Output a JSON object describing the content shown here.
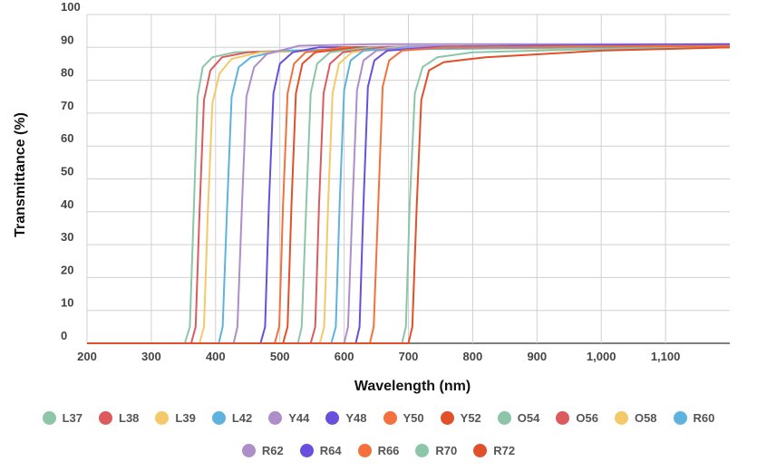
{
  "chart_data": {
    "type": "line",
    "title": "",
    "xlabel": "Wavelength (nm)",
    "ylabel": "Transmittance (%)",
    "xlim": [
      200,
      1200
    ],
    "ylim": [
      0,
      100
    ],
    "x_ticks": [
      200,
      300,
      400,
      500,
      600,
      700,
      800,
      900,
      1000,
      1100
    ],
    "x_tick_labels": [
      "200",
      "300",
      "400",
      "500",
      "600",
      "700",
      "800",
      "900",
      "1,000",
      "1,100"
    ],
    "y_ticks": [
      0,
      10,
      20,
      30,
      40,
      50,
      60,
      70,
      80,
      90,
      100
    ],
    "y_tick_labels": [
      "0",
      "10",
      "20",
      "30",
      "40",
      "50",
      "60",
      "70",
      "80",
      "90",
      "100"
    ],
    "grid": true,
    "legend_position": "bottom",
    "series": [
      {
        "name": "L37",
        "color": "#8cc5a7",
        "points": [
          [
            200,
            0
          ],
          [
            352,
            0
          ],
          [
            360,
            5
          ],
          [
            366,
            40
          ],
          [
            372,
            75
          ],
          [
            380,
            84
          ],
          [
            395,
            87
          ],
          [
            430,
            88.5
          ],
          [
            600,
            89.5
          ],
          [
            1200,
            90
          ]
        ]
      },
      {
        "name": "L38",
        "color": "#dc5a5e",
        "points": [
          [
            200,
            0
          ],
          [
            362,
            0
          ],
          [
            369,
            5
          ],
          [
            375,
            40
          ],
          [
            382,
            74
          ],
          [
            392,
            83
          ],
          [
            410,
            87
          ],
          [
            450,
            88.5
          ],
          [
            650,
            89.5
          ],
          [
            1200,
            90
          ]
        ]
      },
      {
        "name": "L39",
        "color": "#f3c96a",
        "points": [
          [
            200,
            0
          ],
          [
            375,
            0
          ],
          [
            382,
            5
          ],
          [
            388,
            40
          ],
          [
            395,
            73
          ],
          [
            406,
            82
          ],
          [
            425,
            86.5
          ],
          [
            470,
            88.5
          ],
          [
            700,
            89.5
          ],
          [
            1200,
            90
          ]
        ]
      },
      {
        "name": "L42",
        "color": "#5eb3de",
        "points": [
          [
            200,
            0
          ],
          [
            405,
            0
          ],
          [
            411,
            5
          ],
          [
            418,
            42
          ],
          [
            425,
            75
          ],
          [
            436,
            84
          ],
          [
            455,
            87
          ],
          [
            500,
            89
          ],
          [
            1200,
            90.5
          ]
        ]
      },
      {
        "name": "Y44",
        "color": "#ae8ec8",
        "points": [
          [
            200,
            0
          ],
          [
            428,
            0
          ],
          [
            434,
            5
          ],
          [
            441,
            42
          ],
          [
            448,
            75
          ],
          [
            460,
            84
          ],
          [
            480,
            88
          ],
          [
            530,
            90.5
          ],
          [
            650,
            91
          ],
          [
            1200,
            91
          ]
        ]
      },
      {
        "name": "Y48",
        "color": "#6a4fdc",
        "points": [
          [
            200,
            0
          ],
          [
            470,
            0
          ],
          [
            477,
            5
          ],
          [
            483,
            42
          ],
          [
            490,
            76
          ],
          [
            500,
            85
          ],
          [
            520,
            88.5
          ],
          [
            560,
            90
          ],
          [
            1200,
            91
          ]
        ]
      },
      {
        "name": "Y50",
        "color": "#f4703c",
        "points": [
          [
            200,
            0
          ],
          [
            492,
            0
          ],
          [
            499,
            5
          ],
          [
            505,
            42
          ],
          [
            512,
            76
          ],
          [
            522,
            85
          ],
          [
            540,
            88.5
          ],
          [
            600,
            90
          ],
          [
            1200,
            90.5
          ]
        ]
      },
      {
        "name": "Y52",
        "color": "#e0502a",
        "points": [
          [
            200,
            0
          ],
          [
            505,
            0
          ],
          [
            512,
            5
          ],
          [
            518,
            42
          ],
          [
            525,
            76
          ],
          [
            535,
            85
          ],
          [
            555,
            88.5
          ],
          [
            620,
            90
          ],
          [
            1200,
            90.5
          ]
        ]
      },
      {
        "name": "O54",
        "color": "#8cc5a7",
        "points": [
          [
            200,
            0
          ],
          [
            528,
            0
          ],
          [
            534,
            5
          ],
          [
            541,
            42
          ],
          [
            548,
            76
          ],
          [
            558,
            85
          ],
          [
            578,
            88.5
          ],
          [
            640,
            90
          ],
          [
            1200,
            90.5
          ]
        ]
      },
      {
        "name": "O56",
        "color": "#dc5a5e",
        "points": [
          [
            200,
            0
          ],
          [
            548,
            0
          ],
          [
            555,
            5
          ],
          [
            561,
            42
          ],
          [
            568,
            76
          ],
          [
            578,
            85
          ],
          [
            598,
            88.5
          ],
          [
            660,
            90
          ],
          [
            1200,
            90.5
          ]
        ]
      },
      {
        "name": "O58",
        "color": "#f3c96a",
        "points": [
          [
            200,
            0
          ],
          [
            562,
            0
          ],
          [
            569,
            5
          ],
          [
            575,
            42
          ],
          [
            582,
            76
          ],
          [
            592,
            85
          ],
          [
            612,
            88.5
          ],
          [
            680,
            90
          ],
          [
            1200,
            90.5
          ]
        ]
      },
      {
        "name": "R60",
        "color": "#5eb3de",
        "points": [
          [
            200,
            0
          ],
          [
            580,
            0
          ],
          [
            587,
            5
          ],
          [
            593,
            42
          ],
          [
            600,
            77
          ],
          [
            610,
            86
          ],
          [
            630,
            89
          ],
          [
            700,
            90
          ],
          [
            1200,
            90.5
          ]
        ]
      },
      {
        "name": "R62",
        "color": "#ae8ec8",
        "points": [
          [
            200,
            0
          ],
          [
            600,
            0
          ],
          [
            606,
            5
          ],
          [
            613,
            42
          ],
          [
            620,
            77
          ],
          [
            630,
            86
          ],
          [
            650,
            89
          ],
          [
            720,
            90
          ],
          [
            1200,
            90.5
          ]
        ]
      },
      {
        "name": "R64",
        "color": "#6a4fdc",
        "points": [
          [
            200,
            0
          ],
          [
            618,
            0
          ],
          [
            624,
            5
          ],
          [
            630,
            42
          ],
          [
            637,
            78
          ],
          [
            647,
            86
          ],
          [
            667,
            89
          ],
          [
            740,
            90
          ],
          [
            1200,
            90.5
          ]
        ]
      },
      {
        "name": "R66",
        "color": "#f4703c",
        "points": [
          [
            200,
            0
          ],
          [
            640,
            0
          ],
          [
            646,
            5
          ],
          [
            653,
            42
          ],
          [
            660,
            78
          ],
          [
            670,
            86
          ],
          [
            690,
            89
          ],
          [
            760,
            90
          ],
          [
            1200,
            90.5
          ]
        ]
      },
      {
        "name": "R70",
        "color": "#8cc5a7",
        "points": [
          [
            200,
            0
          ],
          [
            690,
            0
          ],
          [
            696,
            5
          ],
          [
            702,
            42
          ],
          [
            710,
            76
          ],
          [
            722,
            84
          ],
          [
            745,
            87
          ],
          [
            800,
            88.5
          ],
          [
            1000,
            89.5
          ],
          [
            1200,
            90
          ]
        ]
      },
      {
        "name": "R72",
        "color": "#e0502a",
        "points": [
          [
            200,
            0
          ],
          [
            700,
            0
          ],
          [
            706,
            5
          ],
          [
            713,
            42
          ],
          [
            720,
            74
          ],
          [
            732,
            83
          ],
          [
            755,
            85.5
          ],
          [
            820,
            87
          ],
          [
            1000,
            89
          ],
          [
            1200,
            90
          ]
        ]
      }
    ]
  }
}
